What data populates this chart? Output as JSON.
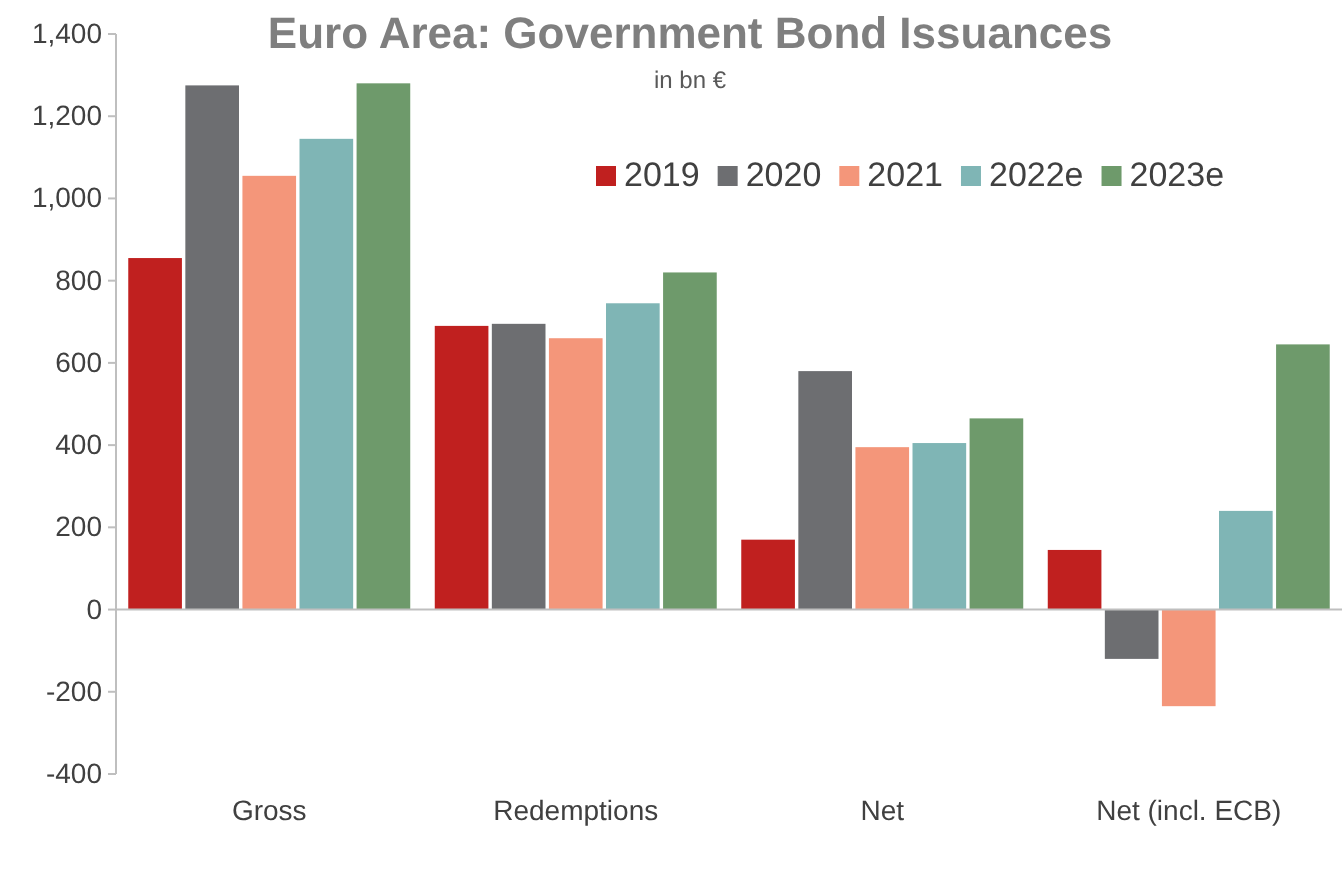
{
  "chart_data": {
    "type": "bar",
    "title": "Euro Area: Government Bond Issuances",
    "subtitle": "in bn €",
    "categories": [
      "Gross",
      "Redemptions",
      "Net",
      "Net (incl. ECB)"
    ],
    "series": [
      {
        "name": "2019",
        "color": "#c0201f",
        "values": [
          855,
          690,
          170,
          145
        ]
      },
      {
        "name": "2020",
        "color": "#6d6e71",
        "values": [
          1275,
          695,
          580,
          -120
        ]
      },
      {
        "name": "2021",
        "color": "#f4967a",
        "values": [
          1055,
          660,
          395,
          -235
        ]
      },
      {
        "name": "2022e",
        "color": "#7fb5b5",
        "values": [
          1145,
          745,
          405,
          240
        ]
      },
      {
        "name": "2023e",
        "color": "#6e9a6b",
        "values": [
          1280,
          820,
          465,
          645
        ]
      }
    ],
    "ylim": [
      -400,
      1400
    ],
    "yticks": [
      {
        "value": -400,
        "label": "-400"
      },
      {
        "value": -200,
        "label": "-200"
      },
      {
        "value": 0,
        "label": "0"
      },
      {
        "value": 200,
        "label": "200"
      },
      {
        "value": 400,
        "label": "400"
      },
      {
        "value": 600,
        "label": "600"
      },
      {
        "value": 800,
        "label": "800"
      },
      {
        "value": 1000,
        "label": "1,000"
      },
      {
        "value": 1200,
        "label": "1,200"
      },
      {
        "value": 1400,
        "label": "1,400"
      }
    ],
    "legend": "top right"
  }
}
